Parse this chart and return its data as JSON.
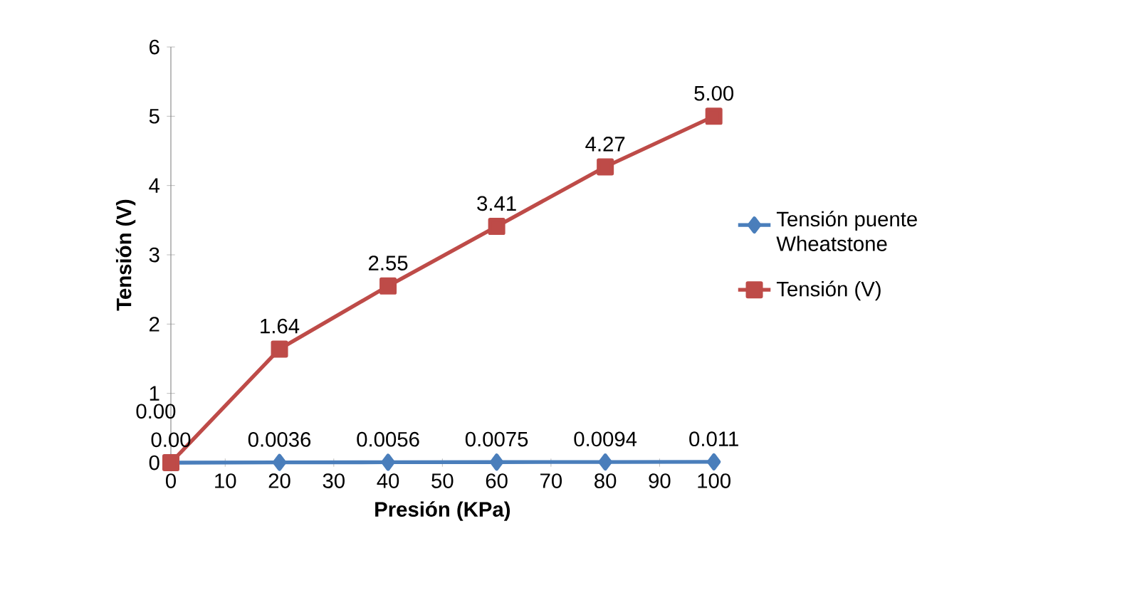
{
  "chart_data": {
    "type": "line",
    "xlabel": "Presión (KPa)",
    "ylabel": "Tensión (V)",
    "x": [
      0,
      20,
      40,
      60,
      80,
      100
    ],
    "series": [
      {
        "name": "Tensión puente Wheatstone",
        "color": "#4a7ebb",
        "marker": "diamond",
        "values": [
          0,
          0.0036,
          0.0056,
          0.0075,
          0.0094,
          0.011
        ],
        "value_labels": [
          "0.00",
          "0.0036",
          "0.0056",
          "0.0075",
          "0.0094",
          "0.011"
        ]
      },
      {
        "name": "Tensión (V)",
        "color": "#be4b48",
        "marker": "square",
        "values": [
          0,
          1.64,
          2.55,
          3.41,
          4.27,
          5.0
        ],
        "value_labels": [
          "0.00",
          "1.64",
          "2.55",
          "3.41",
          "4.27",
          "5.00"
        ]
      }
    ],
    "xlim": [
      0,
      100
    ],
    "xticks": [
      0,
      10,
      20,
      30,
      40,
      50,
      60,
      70,
      80,
      90,
      100
    ],
    "ylim": [
      0,
      6
    ],
    "yticks": [
      0,
      1,
      2,
      3,
      4,
      5,
      6
    ],
    "legend": "right",
    "grid": false,
    "line_style": "solid"
  }
}
